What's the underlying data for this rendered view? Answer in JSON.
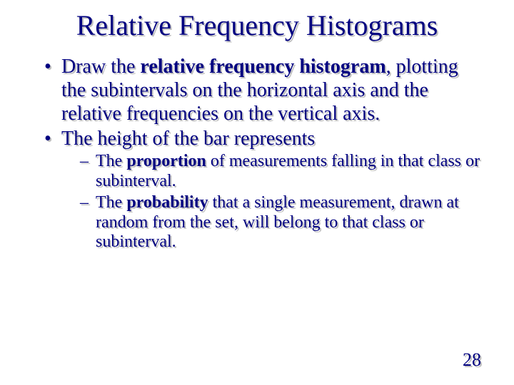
{
  "colors": {
    "text": "#000080",
    "shadow": "#c0c0c0",
    "background": "#ffffff"
  },
  "typography": {
    "family": "Times New Roman",
    "title_fontsize": 40,
    "bullet_fontsize": 28,
    "subbullet_fontsize": 24,
    "pagenum_fontsize": 26
  },
  "title": "Relative Frequency Histograms",
  "bullets": {
    "b1": {
      "pre": "Draw the ",
      "bold": "relative frequency histogram",
      "post": ", plotting the subintervals on the horizontal axis and the relative frequencies on the vertical axis."
    },
    "b2": {
      "text": "The height of the bar represents"
    }
  },
  "subbullets": {
    "s1": {
      "pre": "The ",
      "bold": "proportion",
      "post": " of measurements falling in that class or subinterval."
    },
    "s2": {
      "pre": "The ",
      "bold": "probability",
      "post": "  that a single measurement, drawn at random from the set, will belong to that class or subinterval."
    }
  },
  "page_number": "28"
}
